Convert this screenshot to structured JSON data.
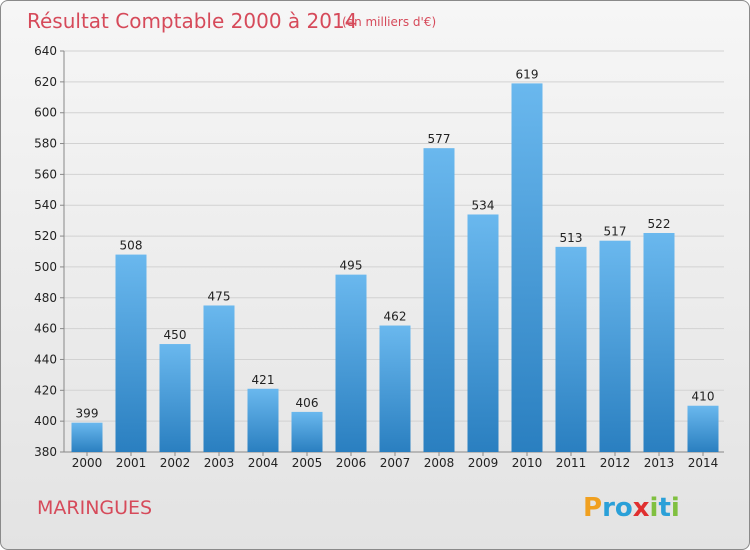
{
  "header": {
    "title": "Résultat Comptable 2000 à 2014",
    "unit": "(en milliers d'€)"
  },
  "footer": {
    "commune": "MARINGUES",
    "logo_text": "Proxiti"
  },
  "colors": {
    "bar_top": "#6ab8ee",
    "bar_bottom": "#2a7fc0",
    "title": "#d64a5a"
  },
  "chart_data": {
    "type": "bar",
    "title": "Résultat Comptable 2000 à 2014",
    "subtitle": "(en milliers d'€)",
    "categories": [
      "2000",
      "2001",
      "2002",
      "2003",
      "2004",
      "2005",
      "2006",
      "2007",
      "2008",
      "2009",
      "2010",
      "2011",
      "2012",
      "2013",
      "2014"
    ],
    "values": [
      399,
      508,
      450,
      475,
      421,
      406,
      495,
      462,
      577,
      534,
      619,
      513,
      517,
      522,
      410
    ],
    "ylim": [
      380,
      640
    ],
    "yticks": [
      380,
      400,
      420,
      440,
      460,
      480,
      500,
      520,
      540,
      560,
      580,
      600,
      620,
      640
    ],
    "grid": true,
    "legend": "none"
  }
}
